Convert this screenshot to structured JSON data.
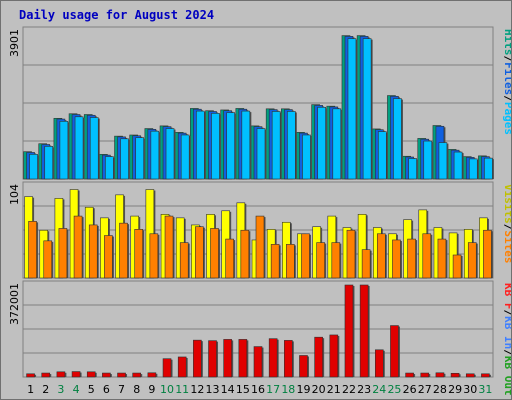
{
  "chart_data": {
    "type": "bar",
    "title": "Daily usage for August 2024",
    "colors": {
      "title": "#0000c0",
      "pages": "#00c0ff",
      "files": "#1060e0",
      "hits": "#00a080",
      "visits": "#ffff00",
      "sites": "#ff8000",
      "kb_in": "#20a020",
      "kb_out": "#4080ff",
      "kb_f": "#ff2020",
      "kbytes": "#e00000",
      "weekend_label": "#008040",
      "weekday_label": "#000000"
    },
    "days": [
      "1",
      "2",
      "3",
      "4",
      "5",
      "6",
      "7",
      "8",
      "9",
      "10",
      "11",
      "12",
      "13",
      "14",
      "15",
      "16",
      "17",
      "18",
      "19",
      "20",
      "21",
      "22",
      "23",
      "24",
      "25",
      "26",
      "27",
      "28",
      "29",
      "30",
      "31"
    ],
    "weekend_days": [
      "3",
      "4",
      "10",
      "11",
      "17",
      "18",
      "24",
      "25",
      "31"
    ],
    "panels": [
      {
        "id": "hits",
        "max_label": "3901",
        "ymax": 3901,
        "side_labels": [
          {
            "text": "Hits",
            "color": "#00a080"
          },
          {
            "text": "/",
            "color": "#000000"
          },
          {
            "text": "Files",
            "color": "#1060e0"
          },
          {
            "text": "/",
            "color": "#000000"
          },
          {
            "text": "Pages",
            "color": "#00c0ff"
          }
        ],
        "series": [
          {
            "name": "Hits",
            "color": "#00a080",
            "values": [
              720,
              930,
              1600,
              1720,
              1700,
              650,
              1130,
              1160,
              1330,
              1400,
              1230,
              1860,
              1800,
              1820,
              1860,
              1400,
              1850,
              1850,
              1230,
              1960,
              1920,
              3780,
              3780,
              1320,
              2200,
              600,
              1070,
              1410,
              780,
              590,
              610
            ]
          },
          {
            "name": "Files",
            "color": "#1060e0",
            "values": [
              700,
              910,
              1580,
              1700,
              1680,
              630,
              1110,
              1140,
              1310,
              1380,
              1210,
              1840,
              1780,
              1800,
              1840,
              1380,
              1830,
              1830,
              1210,
              1940,
              1900,
              3760,
              3760,
              1300,
              2180,
              580,
              1050,
              1390,
              760,
              570,
              590
            ]
          },
          {
            "name": "Pages",
            "color": "#00c0ff",
            "values": [
              650,
              860,
              1520,
              1640,
              1620,
              590,
              1060,
              1090,
              1260,
              1330,
              1160,
              1790,
              1730,
              1750,
              1790,
              1330,
              1780,
              1780,
              1160,
              1890,
              1850,
              3700,
              3700,
              1250,
              2120,
              540,
              1000,
              960,
              710,
              530,
              550
            ]
          }
        ]
      },
      {
        "id": "visits",
        "max_label": "104",
        "ymax": 104,
        "side_labels": [
          {
            "text": "Visits",
            "color": "#c0c000"
          },
          {
            "text": "/",
            "color": "#000000"
          },
          {
            "text": "Sites",
            "color": "#ff8000"
          }
        ],
        "series": [
          {
            "name": "Visits",
            "color": "#ffff00",
            "values": [
              92,
              54,
              90,
              100,
              80,
              68,
              94,
              70,
              100,
              72,
              68,
              60,
              72,
              76,
              85,
              43,
              55,
              63,
              50,
              58,
              70,
              57,
              72,
              57,
              50,
              66,
              77,
              57,
              51,
              55,
              68
            ]
          },
          {
            "name": "Sites",
            "color": "#ff8000",
            "values": [
              64,
              42,
              56,
              70,
              60,
              48,
              62,
              55,
              50,
              70,
              40,
              58,
              56,
              44,
              54,
              70,
              38,
              38,
              50,
              40,
              40,
              54,
              32,
              50,
              43,
              44,
              50,
              44,
              26,
              40,
              54
            ]
          }
        ]
      },
      {
        "id": "kbytes",
        "max_label": "372001",
        "ymax": 372001,
        "side_labels": [
          {
            "text": "KB F",
            "color": "#ff2020"
          },
          {
            "text": "/",
            "color": "#000000"
          },
          {
            "text": "KB In",
            "color": "#4080ff"
          },
          {
            "text": "/",
            "color": "#000000"
          },
          {
            "text": "KB Out",
            "color": "#20a020"
          }
        ],
        "series": [
          {
            "name": "KB F",
            "color": "#e00000",
            "values": [
              13000,
              16000,
              21000,
              22000,
              21000,
              16000,
              16000,
              16000,
              17000,
              74000,
              81000,
              149000,
              147000,
              152000,
              152000,
              123000,
              155000,
              148000,
              87000,
              161000,
              170000,
              372000,
              372000,
              110000,
              208000,
              16000,
              16000,
              17000,
              15000,
              13000,
              13000
            ]
          }
        ]
      }
    ]
  }
}
